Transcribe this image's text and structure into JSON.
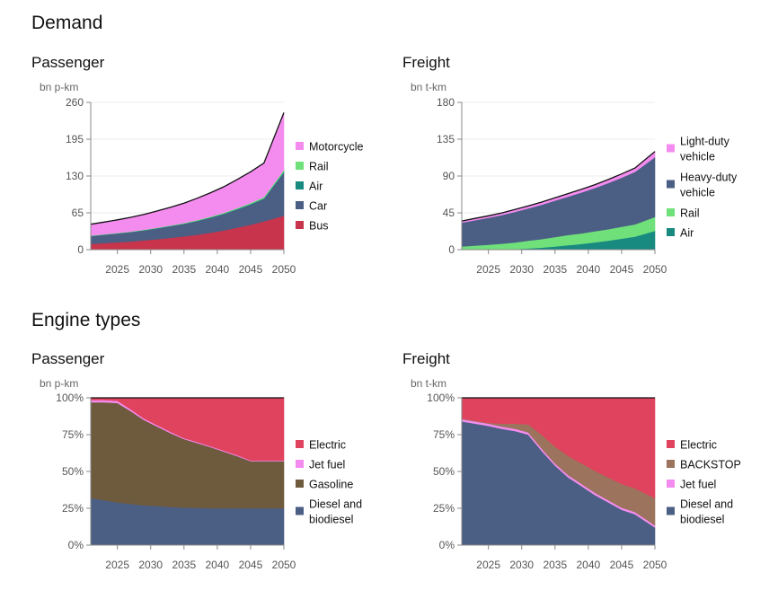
{
  "sections": {
    "demand_title": "Demand",
    "engine_title": "Engine types"
  },
  "chart_data": [
    {
      "id": "demand-passenger",
      "type": "area",
      "stacked": true,
      "title": "Passenger",
      "ylabel": "bn p-km",
      "x": [
        2021,
        2023,
        2025,
        2027,
        2029,
        2031,
        2033,
        2035,
        2037,
        2039,
        2041,
        2043,
        2045,
        2047,
        2050
      ],
      "xticks": [
        2025,
        2030,
        2035,
        2040,
        2045,
        2050
      ],
      "ylim": [
        0,
        260
      ],
      "yticks": [
        0,
        65,
        130,
        195,
        260
      ],
      "ytick_labels": [
        "0",
        "65",
        "130",
        "195",
        "260"
      ],
      "series": [
        {
          "name": "Bus",
          "color": "#c8344c",
          "values": [
            10,
            11.5,
            13,
            14.5,
            16.5,
            18.5,
            21,
            23.5,
            26.5,
            30,
            34,
            39,
            44,
            50,
            60
          ]
        },
        {
          "name": "Car",
          "color": "#4b5e84",
          "values": [
            14,
            14.8,
            15.5,
            16.5,
            17.5,
            19,
            20.5,
            22,
            24,
            26.5,
            29,
            32,
            35.5,
            39.5,
            76
          ]
        },
        {
          "name": "Air",
          "color": "#188a80",
          "values": [
            0.3,
            0.3,
            0.4,
            0.4,
            0.5,
            0.5,
            0.6,
            0.6,
            0.7,
            0.8,
            0.9,
            1,
            1.2,
            1.4,
            2
          ]
        },
        {
          "name": "Rail",
          "color": "#6fe07a",
          "values": [
            0.6,
            0.6,
            0.7,
            0.7,
            0.8,
            0.8,
            0.9,
            1,
            1.1,
            1.2,
            1.3,
            1.5,
            1.7,
            2,
            3
          ]
        },
        {
          "name": "Motorcycle",
          "color": "#f48cf0",
          "values": [
            20,
            21.5,
            23,
            25,
            27,
            29.5,
            32,
            35,
            38.5,
            42,
            46,
            50.5,
            55,
            60,
            101
          ]
        }
      ],
      "legend_order": [
        "Motorcycle",
        "Rail",
        "Air",
        "Car",
        "Bus"
      ]
    },
    {
      "id": "demand-freight",
      "type": "area",
      "stacked": true,
      "title": "Freight",
      "ylabel": "bn t-km",
      "x": [
        2021,
        2023,
        2025,
        2027,
        2029,
        2031,
        2033,
        2035,
        2037,
        2039,
        2041,
        2043,
        2045,
        2047,
        2050
      ],
      "xticks": [
        2025,
        2030,
        2035,
        2040,
        2045,
        2050
      ],
      "ylim": [
        0,
        180
      ],
      "yticks": [
        0,
        45,
        90,
        135,
        180
      ],
      "ytick_labels": [
        "0",
        "45",
        "90",
        "135",
        "180"
      ],
      "series": [
        {
          "name": "Air",
          "color": "#188a80",
          "values": [
            0,
            0,
            0,
            0.3,
            0.8,
            1.5,
            2.5,
            4,
            5.5,
            7,
            9,
            11,
            13.5,
            16,
            23
          ]
        },
        {
          "name": "Rail",
          "color": "#6fe07a",
          "values": [
            4,
            5,
            6,
            7,
            8,
            9.5,
            10.5,
            11.5,
            12.5,
            13,
            13.5,
            14,
            14.5,
            15,
            17
          ]
        },
        {
          "name": "Heavy-duty vehicle",
          "color": "#4b5e84",
          "values": [
            29,
            31,
            33,
            35,
            37.5,
            39.5,
            42,
            44.5,
            47,
            50,
            53,
            56.5,
            60,
            64,
            73
          ]
        },
        {
          "name": "Light-duty vehicle",
          "color": "#f48cf0",
          "values": [
            2,
            2.2,
            2.4,
            2.6,
            2.8,
            3,
            3.2,
            3.4,
            3.6,
            3.8,
            4,
            4.2,
            4.5,
            4.8,
            7
          ]
        }
      ],
      "legend_order": [
        "Light-duty vehicle",
        "Heavy-duty vehicle",
        "Rail",
        "Air"
      ]
    },
    {
      "id": "engine-passenger",
      "type": "area",
      "stacked": true,
      "title": "Passenger",
      "ylabel": "bn p-km",
      "x": [
        2021,
        2023,
        2025,
        2027,
        2029,
        2031,
        2033,
        2035,
        2037,
        2039,
        2041,
        2043,
        2045,
        2047,
        2050
      ],
      "xticks": [
        2025,
        2030,
        2035,
        2040,
        2045,
        2050
      ],
      "ylim": [
        0,
        100
      ],
      "yticks": [
        0,
        25,
        50,
        75,
        100
      ],
      "ytick_labels": [
        "0%",
        "25%",
        "50%",
        "75%",
        "100%"
      ],
      "series": [
        {
          "name": "Diesel and biodiesel",
          "color": "#4b5e84",
          "values": [
            32,
            30.5,
            29,
            28,
            27,
            26.5,
            26,
            25.5,
            25.3,
            25,
            25,
            25,
            25,
            25,
            25
          ]
        },
        {
          "name": "Gasoline",
          "color": "#6e5a3c",
          "values": [
            65,
            66.5,
            67.5,
            63,
            58,
            54,
            50,
            46.5,
            44,
            41.5,
            38.5,
            35.5,
            32,
            32,
            32
          ]
        },
        {
          "name": "Jet fuel",
          "color": "#f48cf0",
          "values": [
            1.5,
            1.5,
            1.5,
            1.2,
            1,
            0.9,
            0.8,
            0.7,
            0.7,
            0.6,
            0.6,
            0.6,
            0.5,
            0.5,
            0.5
          ]
        },
        {
          "name": "Electric",
          "color": "#e0435e",
          "values": [
            1.5,
            1.5,
            2,
            7.8,
            14,
            18.6,
            23.2,
            27.3,
            30,
            32.9,
            35.9,
            38.9,
            42.5,
            42.5,
            42.5
          ]
        }
      ],
      "legend_order": [
        "Electric",
        "Jet fuel",
        "Gasoline",
        "Diesel and biodiesel"
      ]
    },
    {
      "id": "engine-freight",
      "type": "area",
      "stacked": true,
      "title": "Freight",
      "ylabel": "bn t-km",
      "x": [
        2021,
        2023,
        2025,
        2027,
        2029,
        2031,
        2033,
        2035,
        2037,
        2039,
        2041,
        2043,
        2045,
        2047,
        2050
      ],
      "xticks": [
        2025,
        2030,
        2035,
        2040,
        2045,
        2050
      ],
      "ylim": [
        0,
        100
      ],
      "yticks": [
        0,
        25,
        50,
        75,
        100
      ],
      "ytick_labels": [
        "0%",
        "25%",
        "50%",
        "75%",
        "100%"
      ],
      "series": [
        {
          "name": "Diesel and biodiesel",
          "color": "#4b5e84",
          "values": [
            84,
            82.5,
            81,
            79,
            77.5,
            75,
            64,
            54,
            46,
            40,
            34,
            29,
            24,
            21,
            12
          ]
        },
        {
          "name": "Jet fuel",
          "color": "#f48cf0",
          "values": [
            1.5,
            1.5,
            1.5,
            1.5,
            1.5,
            1.5,
            1.5,
            1.5,
            1.5,
            1.5,
            1.5,
            1.5,
            1.5,
            1.5,
            1.5
          ]
        },
        {
          "name": "BACKSTOP",
          "color": "#9c735c",
          "values": [
            0.5,
            0.5,
            0.5,
            2,
            3.5,
            5.5,
            9.5,
            11.5,
            13,
            14,
            15,
            15.5,
            16,
            16,
            18.5
          ]
        },
        {
          "name": "Electric",
          "color": "#e0435e",
          "values": [
            14,
            15.5,
            17,
            17.5,
            17.5,
            18,
            25,
            33,
            39.5,
            44.5,
            49.5,
            54,
            58.5,
            61.5,
            68
          ]
        }
      ],
      "legend_order": [
        "Electric",
        "BACKSTOP",
        "Jet fuel",
        "Diesel and biodiesel"
      ]
    }
  ]
}
